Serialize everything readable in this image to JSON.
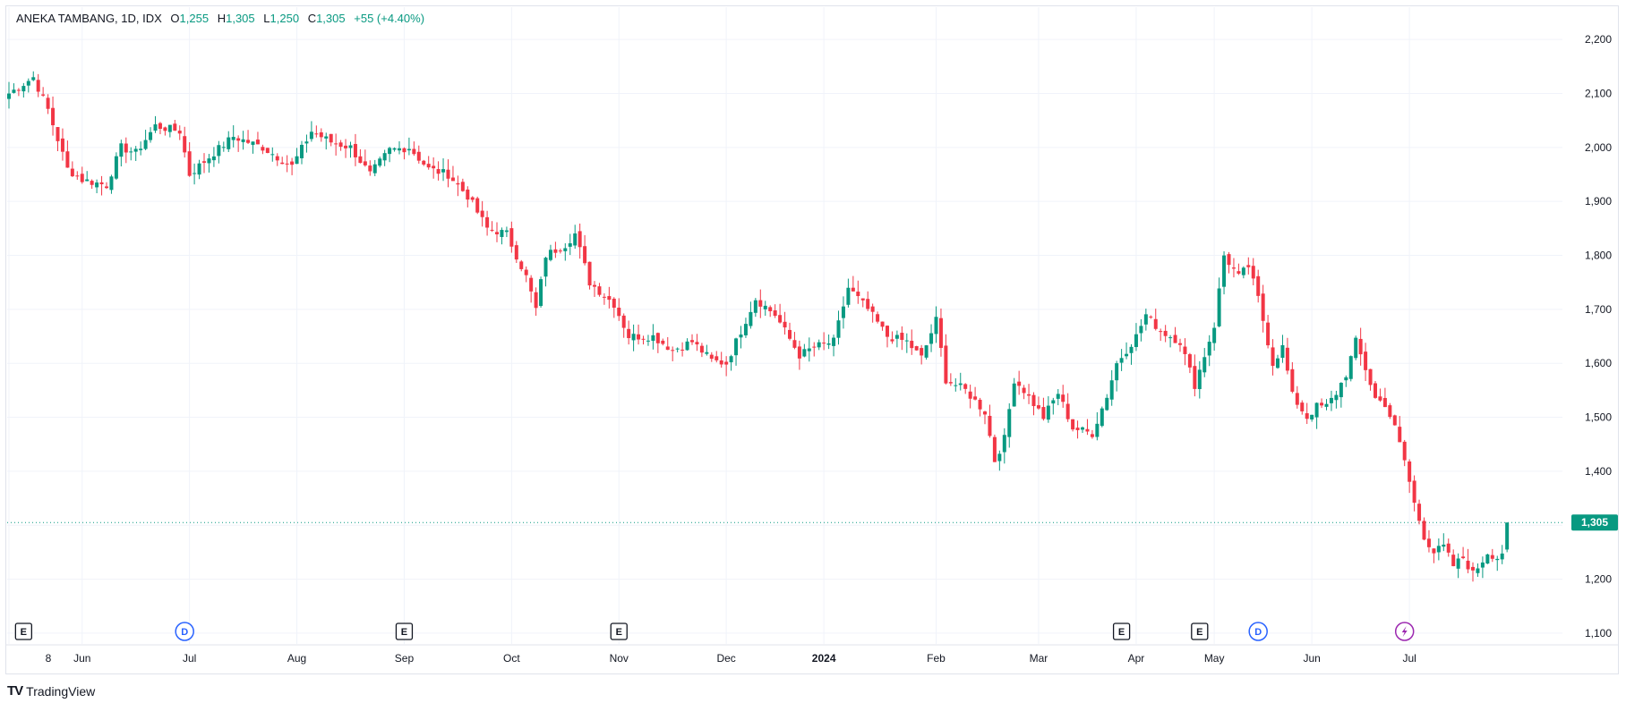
{
  "header": {
    "symbol": "ANEKA TAMBANG, 1D, IDX",
    "open_label": "O",
    "open": "1,255",
    "high_label": "H",
    "high": "1,305",
    "low_label": "L",
    "low": "1,250",
    "close_label": "C",
    "close": "1,305",
    "change": "+55 (+4.40%)"
  },
  "price_tag": "1,305",
  "branding": {
    "logo": "TV",
    "name": "TradingView"
  },
  "colors": {
    "up": "#089981",
    "down": "#f23645",
    "grid": "#f0f3fa",
    "text": "#131722",
    "dividend": "#2962ff",
    "split": "#9c27b0"
  },
  "chart_data": {
    "type": "candlestick",
    "ylim": [
      1080,
      2240
    ],
    "y_ticks": [
      1100,
      1200,
      1300,
      1400,
      1500,
      1600,
      1700,
      1800,
      1900,
      2000,
      2100,
      2200
    ],
    "y_tick_labels": [
      "1,100",
      "1,200",
      "1,300",
      "1,400",
      "1,500",
      "1,600",
      "1,700",
      "1,800",
      "1,900",
      "2,000",
      "2,100",
      "2,200"
    ],
    "x_labels": [
      "8",
      "Jun",
      "Jul",
      "Aug",
      "Sep",
      "Oct",
      "Nov",
      "Dec",
      "2024",
      "Feb",
      "Mar",
      "Apr",
      "May",
      "Jun",
      "Jul"
    ],
    "x_label_bold": "2024",
    "x_label_index": [
      0,
      15,
      37,
      59,
      81,
      103,
      125,
      147,
      167,
      190,
      211,
      231,
      247,
      267,
      287
    ],
    "last_price": 1305,
    "events": [
      {
        "type": "E",
        "index": 3,
        "icon": "earnings-icon"
      },
      {
        "type": "D",
        "index": 36,
        "icon": "dividend-icon"
      },
      {
        "type": "E",
        "index": 81,
        "icon": "earnings-icon"
      },
      {
        "type": "E",
        "index": 125,
        "icon": "earnings-icon"
      },
      {
        "type": "E",
        "index": 228,
        "icon": "earnings-icon"
      },
      {
        "type": "E",
        "index": 244,
        "icon": "earnings-icon"
      },
      {
        "type": "D",
        "index": 256,
        "icon": "dividend-icon"
      },
      {
        "type": "split",
        "index": 286,
        "icon": "split-icon"
      }
    ],
    "keyframes": [
      [
        0,
        2100
      ],
      [
        5,
        2130
      ],
      [
        8,
        2070
      ],
      [
        12,
        1960
      ],
      [
        15,
        1940
      ],
      [
        20,
        1930
      ],
      [
        23,
        2000
      ],
      [
        26,
        1990
      ],
      [
        30,
        2040
      ],
      [
        35,
        2030
      ],
      [
        37,
        1950
      ],
      [
        42,
        1990
      ],
      [
        46,
        2020
      ],
      [
        52,
        2000
      ],
      [
        58,
        1965
      ],
      [
        62,
        2030
      ],
      [
        66,
        2010
      ],
      [
        70,
        2000
      ],
      [
        74,
        1950
      ],
      [
        78,
        1995
      ],
      [
        82,
        2000
      ],
      [
        86,
        1960
      ],
      [
        90,
        1950
      ],
      [
        94,
        1910
      ],
      [
        98,
        1850
      ],
      [
        102,
        1840
      ],
      [
        106,
        1760
      ],
      [
        108,
        1700
      ],
      [
        110,
        1800
      ],
      [
        114,
        1820
      ],
      [
        116,
        1840
      ],
      [
        119,
        1750
      ],
      [
        124,
        1710
      ],
      [
        127,
        1650
      ],
      [
        132,
        1650
      ],
      [
        136,
        1625
      ],
      [
        140,
        1640
      ],
      [
        144,
        1605
      ],
      [
        147,
        1600
      ],
      [
        150,
        1660
      ],
      [
        153,
        1720
      ],
      [
        157,
        1690
      ],
      [
        162,
        1615
      ],
      [
        165,
        1630
      ],
      [
        169,
        1640
      ],
      [
        172,
        1740
      ],
      [
        176,
        1700
      ],
      [
        180,
        1650
      ],
      [
        184,
        1640
      ],
      [
        187,
        1610
      ],
      [
        190,
        1680
      ],
      [
        192,
        1570
      ],
      [
        196,
        1550
      ],
      [
        200,
        1510
      ],
      [
        202,
        1420
      ],
      [
        204,
        1460
      ],
      [
        206,
        1570
      ],
      [
        208,
        1550
      ],
      [
        212,
        1500
      ],
      [
        215,
        1545
      ],
      [
        218,
        1480
      ],
      [
        222,
        1470
      ],
      [
        225,
        1540
      ],
      [
        227,
        1600
      ],
      [
        231,
        1650
      ],
      [
        233,
        1690
      ],
      [
        236,
        1660
      ],
      [
        240,
        1640
      ],
      [
        243,
        1560
      ],
      [
        247,
        1670
      ],
      [
        249,
        1800
      ],
      [
        252,
        1760
      ],
      [
        254,
        1780
      ],
      [
        256,
        1720
      ],
      [
        259,
        1600
      ],
      [
        261,
        1630
      ],
      [
        263,
        1540
      ],
      [
        266,
        1500
      ],
      [
        268,
        1520
      ],
      [
        270,
        1520
      ],
      [
        272,
        1545
      ],
      [
        274,
        1580
      ],
      [
        276,
        1640
      ],
      [
        278,
        1590
      ],
      [
        280,
        1535
      ],
      [
        282,
        1525
      ],
      [
        284,
        1480
      ],
      [
        286,
        1420
      ],
      [
        288,
        1340
      ],
      [
        290,
        1280
      ],
      [
        292,
        1250
      ],
      [
        294,
        1260
      ],
      [
        296,
        1225
      ],
      [
        298,
        1240
      ],
      [
        300,
        1210
      ],
      [
        302,
        1235
      ],
      [
        303,
        1250
      ],
      [
        305,
        1240
      ],
      [
        306,
        1250
      ],
      [
        307,
        1305
      ]
    ],
    "last_candle": {
      "open": 1255,
      "high": 1305,
      "low": 1250,
      "close": 1305
    }
  }
}
